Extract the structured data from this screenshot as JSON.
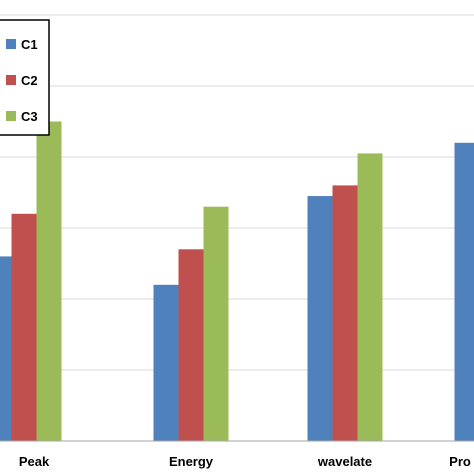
{
  "chart_data": {
    "type": "bar",
    "categories": [
      "Peak",
      "Energy",
      "wavelate",
      "Pro"
    ],
    "series": [
      {
        "name": "C1",
        "color": "#4F81BD",
        "values": [
          2.6,
          2.2,
          3.45,
          4.2
        ]
      },
      {
        "name": "C2",
        "color": "#C0504D",
        "values": [
          3.2,
          2.7,
          3.6,
          null
        ]
      },
      {
        "name": "C3",
        "color": "#9BBB59",
        "values": [
          4.5,
          3.3,
          4.05,
          null
        ]
      }
    ],
    "ylim": [
      0,
      6
    ],
    "grid": true,
    "legend": "top-left"
  }
}
